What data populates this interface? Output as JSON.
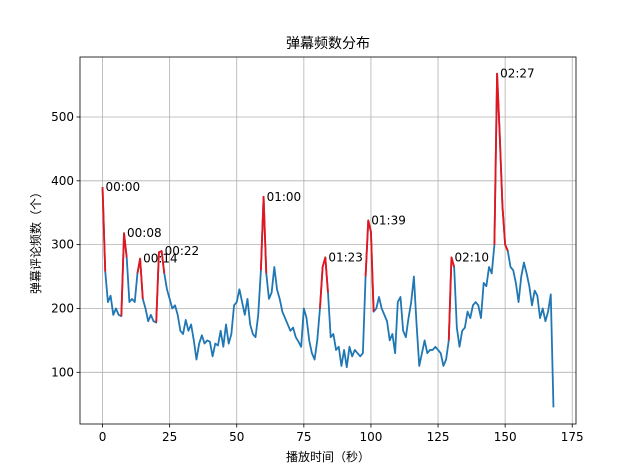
{
  "chart_data": {
    "type": "line",
    "title": "弹幕频数分布",
    "x_label": "播放时间（秒）",
    "y_label": "弹幕评论频数（个）",
    "x": [
      0,
      1,
      2,
      3,
      4,
      5,
      6,
      7,
      8,
      9,
      10,
      11,
      12,
      13,
      14,
      15,
      16,
      17,
      18,
      19,
      20,
      21,
      22,
      23,
      24,
      25,
      26,
      27,
      28,
      29,
      30,
      31,
      32,
      33,
      34,
      35,
      36,
      37,
      38,
      39,
      40,
      41,
      42,
      43,
      44,
      45,
      46,
      47,
      48,
      49,
      50,
      51,
      52,
      53,
      54,
      55,
      56,
      57,
      58,
      59,
      60,
      61,
      62,
      63,
      64,
      65,
      66,
      67,
      68,
      69,
      70,
      71,
      72,
      73,
      74,
      75,
      76,
      77,
      78,
      79,
      80,
      81,
      82,
      83,
      84,
      85,
      86,
      87,
      88,
      89,
      90,
      91,
      92,
      93,
      94,
      95,
      96,
      97,
      98,
      99,
      100,
      101,
      102,
      103,
      104,
      105,
      106,
      107,
      108,
      109,
      110,
      111,
      112,
      113,
      114,
      115,
      116,
      117,
      118,
      119,
      120,
      121,
      122,
      123,
      124,
      125,
      126,
      127,
      128,
      129,
      130,
      131,
      132,
      133,
      134,
      135,
      136,
      137,
      138,
      139,
      140,
      141,
      142,
      143,
      144,
      145,
      146,
      147,
      148,
      149,
      150,
      151,
      152,
      153,
      154,
      155,
      156,
      157,
      158,
      159,
      160,
      161,
      162,
      163,
      164,
      165,
      166,
      167,
      168
    ],
    "series": [
      {
        "color": "#1f77b4",
        "values": [
          390,
          258,
          210,
          220,
          190,
          200,
          190,
          188,
          318,
          280,
          210,
          215,
          210,
          255,
          278,
          215,
          200,
          180,
          190,
          180,
          178,
          288,
          290,
          255,
          230,
          215,
          200,
          205,
          190,
          165,
          160,
          182,
          165,
          175,
          150,
          120,
          145,
          158,
          145,
          150,
          148,
          125,
          145,
          142,
          165,
          140,
          175,
          145,
          160,
          205,
          210,
          230,
          210,
          190,
          215,
          175,
          160,
          155,
          190,
          260,
          375,
          255,
          215,
          225,
          265,
          230,
          215,
          195,
          185,
          175,
          165,
          170,
          155,
          148,
          140,
          200,
          185,
          150,
          130,
          120,
          150,
          200,
          265,
          280,
          225,
          155,
          160,
          135,
          140,
          110,
          135,
          108,
          140,
          125,
          135,
          130,
          125,
          130,
          250,
          338,
          320,
          195,
          200,
          218,
          200,
          190,
          180,
          150,
          160,
          130,
          210,
          218,
          165,
          155,
          185,
          210,
          250,
          175,
          110,
          130,
          150,
          130,
          135,
          135,
          140,
          135,
          130,
          110,
          120,
          150,
          280,
          265,
          170,
          140,
          165,
          170,
          195,
          185,
          205,
          210,
          205,
          185,
          240,
          235,
          265,
          255,
          300,
          568,
          470,
          360,
          300,
          290,
          265,
          260,
          240,
          210,
          250,
          272,
          255,
          235,
          205,
          228,
          220,
          185,
          200,
          180,
          195,
          222,
          45
        ]
      },
      {
        "color": "#e8141c",
        "values": [
          390,
          258,
          null,
          null,
          null,
          null,
          null,
          188,
          318,
          280,
          null,
          null,
          null,
          255,
          278,
          215,
          null,
          null,
          null,
          null,
          178,
          288,
          290,
          255,
          null,
          null,
          null,
          null,
          null,
          null,
          null,
          null,
          null,
          null,
          null,
          null,
          null,
          null,
          null,
          null,
          null,
          null,
          null,
          null,
          null,
          null,
          null,
          null,
          null,
          null,
          null,
          null,
          null,
          null,
          null,
          null,
          null,
          null,
          null,
          260,
          375,
          255,
          null,
          null,
          null,
          null,
          null,
          null,
          null,
          null,
          null,
          null,
          null,
          null,
          null,
          null,
          null,
          null,
          null,
          null,
          null,
          200,
          265,
          280,
          225,
          null,
          null,
          null,
          null,
          null,
          null,
          null,
          null,
          null,
          null,
          null,
          null,
          null,
          250,
          338,
          320,
          195,
          null,
          null,
          null,
          null,
          null,
          null,
          null,
          null,
          null,
          null,
          null,
          null,
          null,
          null,
          null,
          null,
          null,
          null,
          null,
          null,
          null,
          null,
          null,
          null,
          null,
          null,
          null,
          150,
          280,
          265,
          null,
          null,
          null,
          null,
          null,
          null,
          null,
          null,
          null,
          null,
          null,
          null,
          null,
          null,
          300,
          568,
          470,
          360,
          300,
          290,
          null,
          null,
          null,
          null,
          null,
          null,
          null,
          null,
          null,
          null,
          null,
          null,
          null,
          null,
          null,
          null,
          null
        ]
      }
    ],
    "annotations": [
      {
        "text": "00:00",
        "x": 0,
        "y": 390
      },
      {
        "text": "00:08",
        "x": 8,
        "y": 318
      },
      {
        "text": "00:14",
        "x": 14,
        "y": 278
      },
      {
        "text": "00:22",
        "x": 22,
        "y": 290
      },
      {
        "text": "01:00",
        "x": 60,
        "y": 375
      },
      {
        "text": "01:23",
        "x": 83,
        "y": 280
      },
      {
        "text": "01:39",
        "x": 99,
        "y": 338
      },
      {
        "text": "02:10",
        "x": 130,
        "y": 280
      },
      {
        "text": "02:27",
        "x": 147,
        "y": 568
      }
    ],
    "xlim": [
      -8.4,
      176.4
    ],
    "xticks": [
      0,
      25,
      50,
      75,
      100,
      125,
      150,
      175
    ],
    "ylim": [
      19,
      594
    ],
    "yticks": [
      100,
      200,
      300,
      400,
      500
    ],
    "grid": true
  }
}
